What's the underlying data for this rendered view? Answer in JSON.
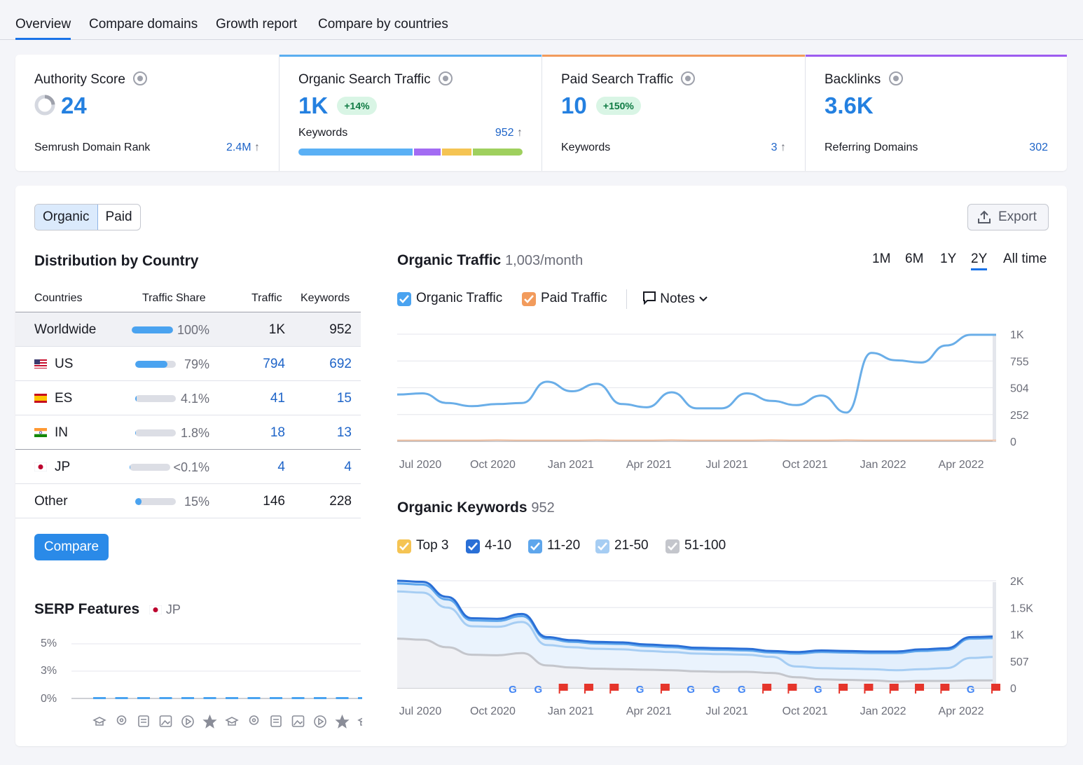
{
  "tabs": [
    "Overview",
    "Compare domains",
    "Growth report",
    "Compare by countries"
  ],
  "kpis": [
    {
      "label": "Authority Score",
      "value": "24",
      "sub_label": "Semrush Domain Rank",
      "sub_value": "2.4M",
      "accent": ""
    },
    {
      "label": "Organic Search Traffic",
      "value": "1K",
      "badge": "+14%",
      "sub_label": "Keywords",
      "sub_value": "952",
      "accent": "#5aaef0"
    },
    {
      "label": "Paid Search Traffic",
      "value": "10",
      "badge": "+150%",
      "sub_label": "Keywords",
      "sub_value": "3",
      "accent": "#f29b5c"
    },
    {
      "label": "Backlinks",
      "value": "3.6K",
      "sub_label": "Referring Domains",
      "sub_value": "302",
      "accent": "#9d5cf0"
    }
  ],
  "keyword_segments": [
    {
      "color": "#5ab0f5",
      "fraction": 0.52
    },
    {
      "color": "#a36cf3",
      "fraction": 0.12
    },
    {
      "color": "#f5c453",
      "fraction": 0.135
    },
    {
      "color": "#9fd05e",
      "fraction": 0.225
    }
  ],
  "toggle": {
    "organic": "Organic",
    "paid": "Paid"
  },
  "export_label": "Export",
  "distribution": {
    "title": "Distribution by Country",
    "headers": {
      "countries": "Countries",
      "share": "Traffic Share",
      "traffic": "Traffic",
      "keywords": "Keywords"
    },
    "rows": [
      {
        "country": "Worldwide",
        "share": "100%",
        "share_value": 1.0,
        "traffic": "1K",
        "keywords": "952"
      },
      {
        "country": "US",
        "share": "79%",
        "share_value": 0.79,
        "traffic": "794",
        "keywords": "692"
      },
      {
        "country": "ES",
        "share": "4.1%",
        "share_value": 0.041,
        "traffic": "41",
        "keywords": "15"
      },
      {
        "country": "IN",
        "share": "1.8%",
        "share_value": 0.018,
        "traffic": "18",
        "keywords": "13"
      },
      {
        "country": "JP",
        "share": "<0.1%",
        "share_value": 0.001,
        "traffic": "4",
        "keywords": "4"
      },
      {
        "country": "Other",
        "share": "15%",
        "share_value": 0.15,
        "traffic": "146",
        "keywords": "228"
      }
    ],
    "compare_label": "Compare"
  },
  "serp": {
    "title": "SERP Features",
    "country": "JP",
    "y_ticks": [
      "5%",
      "3%",
      "0%"
    ],
    "icons": [
      "graduation-cap-icon",
      "location-pin-icon",
      "news-icon",
      "image-pack-icon",
      "link-icon",
      "star-icon",
      "video-icon",
      "video-carousel-icon",
      "crown-icon",
      "image-icon",
      "play-icon",
      "question-bubble-icon",
      "help-circle-icon"
    ]
  },
  "traffic_chart": {
    "title": "Organic Traffic",
    "subtitle": "1,003/month",
    "periods": [
      "1M",
      "6M",
      "1Y",
      "2Y",
      "All time"
    ],
    "selected_period": "2Y",
    "legend": {
      "organic": "Organic Traffic",
      "paid": "Paid Traffic",
      "notes": "Notes"
    }
  },
  "keywords_chart": {
    "title": "Organic Keywords",
    "subtitle": "952",
    "legend": [
      "Top 3",
      "4-10",
      "11-20",
      "21-50",
      "51-100"
    ]
  },
  "chart_data": [
    {
      "type": "line",
      "title": "Organic Traffic",
      "x": [
        "2020-06",
        "2020-07",
        "2020-08",
        "2020-09",
        "2020-10",
        "2020-11",
        "2020-12",
        "2021-01",
        "2021-02",
        "2021-03",
        "2021-04",
        "2021-05",
        "2021-06",
        "2021-07",
        "2021-08",
        "2021-09",
        "2021-10",
        "2021-11",
        "2021-12",
        "2022-01",
        "2022-02",
        "2022-03",
        "2022-04",
        "2022-05",
        "2022-06"
      ],
      "x_tick_labels": [
        "Jul 2020",
        "Oct 2020",
        "Jan 2021",
        "Apr 2021",
        "Jul 2021",
        "Oct 2021",
        "Jan 2022",
        "Apr 2022"
      ],
      "y_ticks": [
        "1K",
        "755",
        "504",
        "252",
        "0"
      ],
      "ylim": [
        0,
        1006
      ],
      "series": [
        {
          "name": "Organic Traffic",
          "color": "#6aaee8",
          "values": [
            440,
            450,
            360,
            330,
            350,
            360,
            560,
            470,
            540,
            350,
            320,
            460,
            310,
            310,
            450,
            380,
            340,
            430,
            270,
            830,
            760,
            740,
            900,
            1000,
            1000
          ]
        },
        {
          "name": "Paid Traffic",
          "color": "#f3c3a4",
          "values": [
            10,
            10,
            10,
            10,
            12,
            10,
            10,
            10,
            12,
            10,
            10,
            12,
            10,
            10,
            10,
            12,
            10,
            10,
            12,
            10,
            10,
            10,
            10,
            10,
            10
          ]
        }
      ]
    },
    {
      "type": "area",
      "title": "Organic Keywords",
      "x_tick_labels": [
        "Jul 2020",
        "Oct 2020",
        "Jan 2021",
        "Apr 2021",
        "Jul 2021",
        "Oct 2021",
        "Jan 2022",
        "Apr 2022"
      ],
      "y_ticks": [
        "2K",
        "1.5K",
        "1K",
        "507",
        "0"
      ],
      "ylim": [
        0,
        2000
      ],
      "series": [
        {
          "name": "4-10",
          "color": "#2a6fd6",
          "values": [
            2000,
            1980,
            1700,
            1300,
            1290,
            1380,
            950,
            890,
            860,
            850,
            810,
            790,
            750,
            740,
            730,
            690,
            670,
            700,
            690,
            680,
            680,
            720,
            740,
            950,
            960
          ]
        },
        {
          "name": "11-20",
          "color": "#5ea6ec",
          "values": [
            1950,
            1930,
            1650,
            1260,
            1250,
            1340,
            920,
            860,
            830,
            820,
            780,
            760,
            720,
            710,
            700,
            660,
            640,
            670,
            660,
            650,
            650,
            690,
            710,
            920,
            930
          ]
        },
        {
          "name": "21-50",
          "color": "#a6cdf3",
          "values": [
            1800,
            1780,
            1500,
            1150,
            1140,
            1230,
            800,
            760,
            730,
            720,
            690,
            670,
            640,
            630,
            620,
            580,
            400,
            370,
            360,
            350,
            330,
            350,
            370,
            560,
            580
          ]
        },
        {
          "name": "51-100",
          "color": "#c4c6cc",
          "values": [
            920,
            900,
            760,
            620,
            610,
            650,
            420,
            380,
            360,
            350,
            340,
            330,
            310,
            300,
            300,
            280,
            200,
            160,
            150,
            140,
            120,
            130,
            130,
            140,
            140
          ]
        }
      ],
      "annotation_markers": [
        "google",
        "google",
        "flag",
        "flag",
        "flag",
        "google",
        "flag",
        "google",
        "google",
        "google",
        "flag",
        "flag",
        "google",
        "flag",
        "flag",
        "flag",
        "flag",
        "flag",
        "google",
        "flag"
      ]
    }
  ]
}
